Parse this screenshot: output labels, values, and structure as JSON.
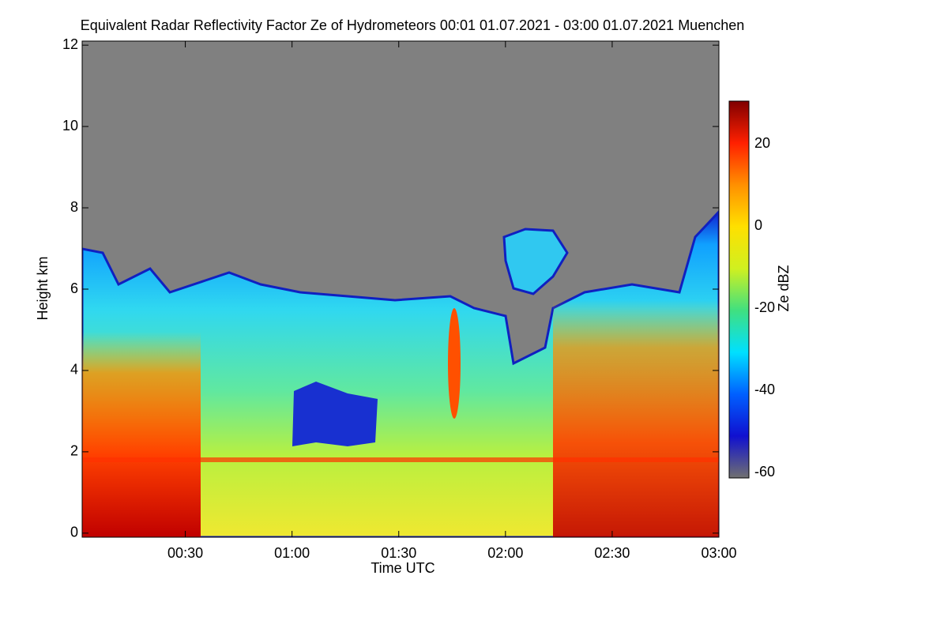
{
  "chart_data": {
    "type": "heatmap",
    "title": "Equivalent Radar Reflectivity Factor Ze of Hydrometeors   00:01 01.07.2021 - 03:00 01.07.2021 Muenchen",
    "x_label": "Time UTC",
    "y_label": "Height km",
    "colorbar_label": "Ze dBZ",
    "xlim": [
      1,
      180
    ],
    "xticks": [
      {
        "value": 30,
        "label": "00:30"
      },
      {
        "value": 60,
        "label": "01:00"
      },
      {
        "value": 90,
        "label": "01:30"
      },
      {
        "value": 120,
        "label": "02:00"
      },
      {
        "value": 150,
        "label": "02:30"
      },
      {
        "value": 180,
        "label": "03:00"
      }
    ],
    "ylim": [
      -0.1,
      12.1
    ],
    "yticks": [
      0,
      2,
      4,
      6,
      8,
      10,
      12
    ],
    "clim": [
      -61.3,
      30.4
    ],
    "cticks": [
      -60,
      -40,
      -20,
      0,
      20
    ],
    "colormap": [
      "#707070",
      "#1010d0",
      "#0060ff",
      "#00e0ff",
      "#40e080",
      "#d0f020",
      "#ffe000",
      "#ff9000",
      "#ff2000",
      "#800000"
    ]
  }
}
